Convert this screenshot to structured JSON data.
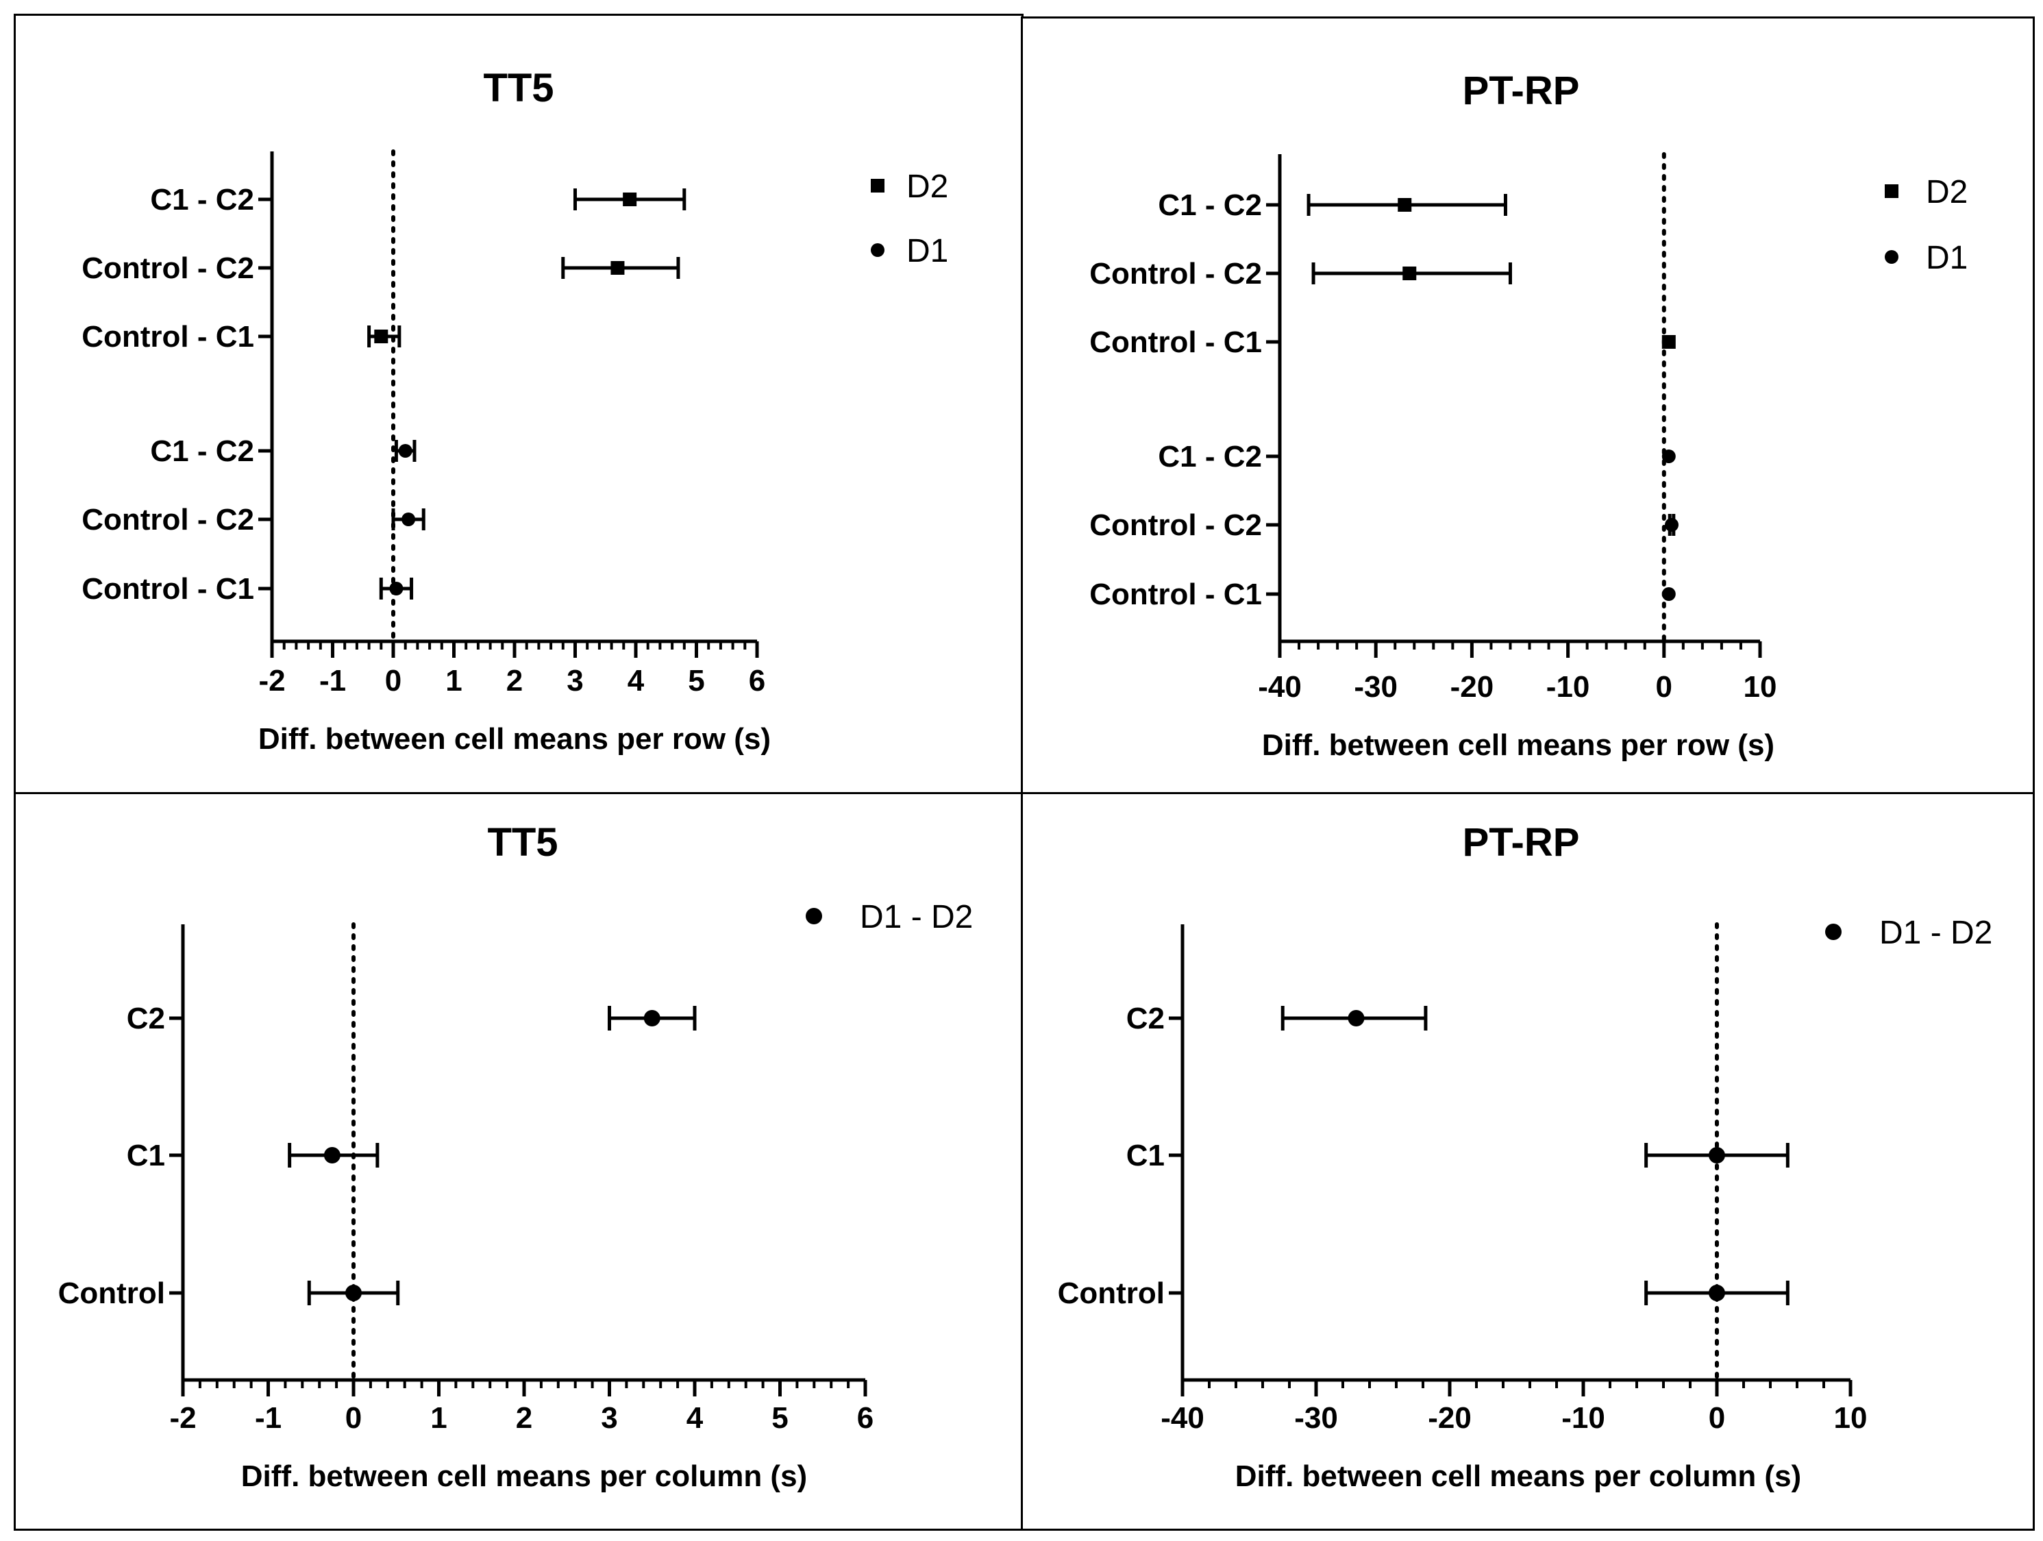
{
  "chart_data": [
    {
      "type": "forest",
      "title": "TT5",
      "xlabel": "Diff. between cell means per row (s)",
      "ylabel": "",
      "xlim": [
        -2,
        6
      ],
      "xticks": [
        -2,
        -1,
        0,
        1,
        2,
        3,
        4,
        5,
        6
      ],
      "xtick_labels": [
        "-2",
        "-1",
        "0",
        "1",
        "2",
        "3",
        "4",
        "5",
        "6"
      ],
      "minor_ticks_per_major": 5,
      "reference_line": 0,
      "groups": [
        {
          "name": "D2",
          "marker": "square"
        },
        {
          "name": "D1",
          "marker": "circle"
        }
      ],
      "rows": [
        {
          "label": "C1 - C2",
          "group": "D2",
          "estimate": 3.9,
          "lower": 3.0,
          "upper": 4.8
        },
        {
          "label": "Control - C2",
          "group": "D2",
          "estimate": 3.7,
          "lower": 2.8,
          "upper": 4.7
        },
        {
          "label": "Control - C1",
          "group": "D2",
          "estimate": -0.2,
          "lower": -0.4,
          "upper": 0.1
        },
        {
          "label": "C1 - C2",
          "group": "D1",
          "estimate": 0.2,
          "lower": 0.05,
          "upper": 0.35
        },
        {
          "label": "Control - C2",
          "group": "D1",
          "estimate": 0.25,
          "lower": 0.0,
          "upper": 0.5
        },
        {
          "label": "Control - C1",
          "group": "D1",
          "estimate": 0.05,
          "lower": -0.2,
          "upper": 0.3
        }
      ],
      "legend": [
        "D2",
        "D1"
      ],
      "legend_position": "top-right"
    },
    {
      "type": "forest",
      "title": "PT-RP",
      "xlabel": "Diff. between cell means per row (s)",
      "ylabel": "",
      "xlim": [
        -40,
        10
      ],
      "xticks": [
        -40,
        -30,
        -20,
        -10,
        0,
        10
      ],
      "xtick_labels": [
        "-40",
        "-30",
        "-20",
        "-10",
        "0",
        "10"
      ],
      "minor_ticks_per_major": 5,
      "reference_line": 0,
      "groups": [
        {
          "name": "D2",
          "marker": "square"
        },
        {
          "name": "D1",
          "marker": "circle"
        }
      ],
      "rows": [
        {
          "label": "C1 - C2",
          "group": "D2",
          "estimate": -27.0,
          "lower": -37.0,
          "upper": -16.5
        },
        {
          "label": "Control - C2",
          "group": "D2",
          "estimate": -26.5,
          "lower": -36.5,
          "upper": -16.0
        },
        {
          "label": "Control - C1",
          "group": "D2",
          "estimate": 0.5,
          "lower": 0.5,
          "upper": 0.5
        },
        {
          "label": "C1 - C2",
          "group": "D1",
          "estimate": 0.5,
          "lower": 0.5,
          "upper": 0.5
        },
        {
          "label": "Control - C2",
          "group": "D1",
          "estimate": 0.8,
          "lower": 0.6,
          "upper": 1.0
        },
        {
          "label": "Control - C1",
          "group": "D1",
          "estimate": 0.5,
          "lower": 0.5,
          "upper": 0.5
        }
      ],
      "legend": [
        "D2",
        "D1"
      ],
      "legend_position": "top-right"
    },
    {
      "type": "forest",
      "title": "TT5",
      "xlabel": "Diff. between cell means per column (s)",
      "ylabel": "",
      "xlim": [
        -2,
        6
      ],
      "xticks": [
        -2,
        -1,
        0,
        1,
        2,
        3,
        4,
        5,
        6
      ],
      "xtick_labels": [
        "-2",
        "-1",
        "0",
        "1",
        "2",
        "3",
        "4",
        "5",
        "6"
      ],
      "minor_ticks_per_major": 5,
      "reference_line": 0,
      "groups": [
        {
          "name": "D1 - D2",
          "marker": "circle"
        }
      ],
      "rows": [
        {
          "label": "C2",
          "group": "D1 - D2",
          "estimate": 3.5,
          "lower": 3.0,
          "upper": 4.0
        },
        {
          "label": "C1",
          "group": "D1 - D2",
          "estimate": -0.25,
          "lower": -0.75,
          "upper": 0.28
        },
        {
          "label": "Control",
          "group": "D1 - D2",
          "estimate": 0.0,
          "lower": -0.52,
          "upper": 0.52
        }
      ],
      "legend": [
        "D1 - D2"
      ],
      "legend_position": "top-right"
    },
    {
      "type": "forest",
      "title": "PT-RP",
      "xlabel": "Diff. between cell means per column (s)",
      "ylabel": "",
      "xlim": [
        -40,
        10
      ],
      "xticks": [
        -40,
        -30,
        -20,
        -10,
        0,
        10
      ],
      "xtick_labels": [
        "-40",
        "-30",
        "-20",
        "-10",
        "0",
        "10"
      ],
      "minor_ticks_per_major": 5,
      "reference_line": 0,
      "groups": [
        {
          "name": "D1 - D2",
          "marker": "circle"
        }
      ],
      "rows": [
        {
          "label": "C2",
          "group": "D1 - D2",
          "estimate": -27.0,
          "lower": -32.5,
          "upper": -21.8
        },
        {
          "label": "C1",
          "group": "D1 - D2",
          "estimate": 0.0,
          "lower": -5.3,
          "upper": 5.3
        },
        {
          "label": "Control",
          "group": "D1 - D2",
          "estimate": 0.0,
          "lower": -5.3,
          "upper": 5.3
        }
      ],
      "legend": [
        "D1 - D2"
      ],
      "legend_position": "top-right"
    }
  ]
}
